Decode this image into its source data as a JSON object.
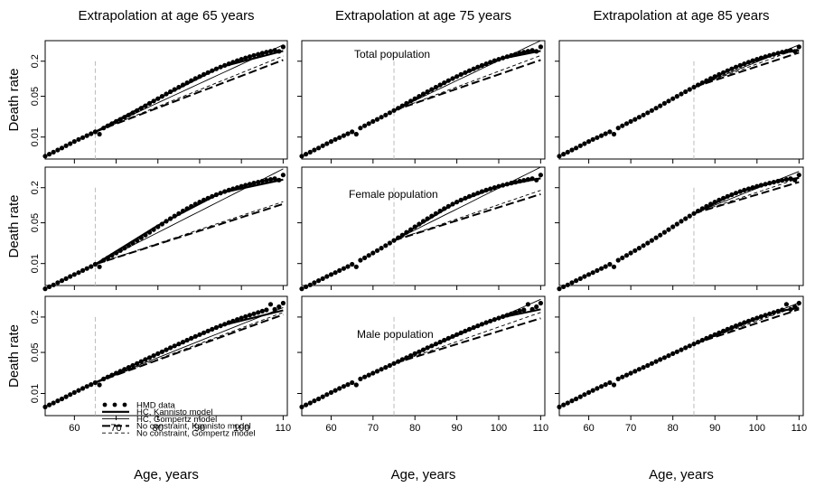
{
  "chart_data": {
    "type": "line",
    "y_scale": "log",
    "ylabel": "Death rate",
    "xlabel": "Age, years",
    "xlim": [
      53,
      111
    ],
    "ylim": [
      0.0042,
      0.45
    ],
    "x_ticks": [
      60,
      70,
      80,
      90,
      100,
      110
    ],
    "y_ticks": [
      0.01,
      0.05,
      0.2
    ],
    "y_tick_labels": [
      "0.01",
      "0.05",
      "0.2"
    ],
    "columns": [
      {
        "title": "Extrapolation at age  65 years",
        "cutoff_age": 65
      },
      {
        "title": "Extrapolation at age  75 years",
        "cutoff_age": 75
      },
      {
        "title": "Extrapolation at age  85 years",
        "cutoff_age": 85
      }
    ],
    "rows": [
      {
        "label": "Total  population"
      },
      {
        "label": "Female  population"
      },
      {
        "label": "Male  population"
      }
    ],
    "legend": {
      "placement": "bottom-left of lower-left panel",
      "entries": [
        {
          "label": "HMD data",
          "style": "points"
        },
        {
          "label": "HC, Kannisto model",
          "style": "thick-solid"
        },
        {
          "label": "HC, Gompertz model",
          "style": "thin-solid"
        },
        {
          "label": "No constraint, Kannisto model",
          "style": "thick-dashed"
        },
        {
          "label": "No constraint, Gompertz model",
          "style": "thin-dashed"
        }
      ]
    },
    "hmd_data": {
      "x": [
        53,
        54,
        55,
        56,
        57,
        58,
        59,
        60,
        61,
        62,
        63,
        64,
        65,
        66,
        67,
        68,
        69,
        70,
        71,
        72,
        73,
        74,
        75,
        76,
        77,
        78,
        79,
        80,
        81,
        82,
        83,
        84,
        85,
        86,
        87,
        88,
        89,
        90,
        91,
        92,
        93,
        94,
        95,
        96,
        97,
        98,
        99,
        100,
        101,
        102,
        103,
        104,
        105,
        106,
        107,
        108,
        109,
        110
      ],
      "total": [
        0.0047,
        0.0051,
        0.0055,
        0.006,
        0.0065,
        0.0071,
        0.0077,
        0.0084,
        0.0091,
        0.0098,
        0.0106,
        0.0114,
        0.0123,
        0.0112,
        0.0143,
        0.0156,
        0.017,
        0.0185,
        0.0201,
        0.0219,
        0.0239,
        0.0261,
        0.0285,
        0.0313,
        0.0344,
        0.0378,
        0.0415,
        0.0456,
        0.05,
        0.0548,
        0.06,
        0.0656,
        0.0717,
        0.0783,
        0.0853,
        0.0928,
        0.1008,
        0.1093,
        0.1183,
        0.1277,
        0.1376,
        0.1478,
        0.1585,
        0.1695,
        0.1808,
        0.1924,
        0.2042,
        0.216,
        0.2279,
        0.2397,
        0.2514,
        0.263,
        0.2744,
        0.2856,
        0.2965,
        0.307,
        0.295,
        0.352
      ],
      "female": [
        0.0037,
        0.004,
        0.0043,
        0.0047,
        0.0051,
        0.0055,
        0.006,
        0.0065,
        0.007,
        0.0076,
        0.0082,
        0.0089,
        0.0097,
        0.0088,
        0.0114,
        0.0125,
        0.0138,
        0.0152,
        0.0167,
        0.0184,
        0.0203,
        0.0225,
        0.0249,
        0.0277,
        0.0308,
        0.0343,
        0.0383,
        0.0427,
        0.0476,
        0.053,
        0.0589,
        0.0653,
        0.0722,
        0.0796,
        0.0875,
        0.0958,
        0.1045,
        0.1135,
        0.1228,
        0.1323,
        0.142,
        0.1518,
        0.1617,
        0.1716,
        0.1815,
        0.1914,
        0.2012,
        0.211,
        0.2207,
        0.2303,
        0.2398,
        0.2492,
        0.2585,
        0.2677,
        0.2768,
        0.2858,
        0.27,
        0.33
      ],
      "male": [
        0.0059,
        0.0064,
        0.0069,
        0.0075,
        0.0081,
        0.0088,
        0.0096,
        0.0104,
        0.0113,
        0.0122,
        0.0132,
        0.0142,
        0.0153,
        0.014,
        0.0177,
        0.0191,
        0.0206,
        0.0222,
        0.0239,
        0.0258,
        0.0278,
        0.03,
        0.0324,
        0.035,
        0.0378,
        0.0408,
        0.0441,
        0.0476,
        0.0514,
        0.0555,
        0.0599,
        0.0646,
        0.0697,
        0.0751,
        0.0809,
        0.0871,
        0.0937,
        0.1007,
        0.1081,
        0.1159,
        0.1241,
        0.1327,
        0.1417,
        0.1511,
        0.1609,
        0.1711,
        0.1817,
        0.1926,
        0.2039,
        0.2155,
        0.2274,
        0.2396,
        0.2521,
        0.2648,
        0.33,
        0.27,
        0.3,
        0.345
      ]
    },
    "fits": {
      "total": {
        "c65": {
          "hc_kannisto": [
            [
              65,
              0.0123
            ],
            [
              80,
              0.0456
            ],
            [
              95,
              0.159
            ],
            [
              110,
              0.3
            ]
          ],
          "hc_gompertz": [
            [
              65,
              0.0123
            ],
            [
              110,
              0.38
            ]
          ],
          "nc_kannisto": [
            [
              65,
              0.0123
            ],
            [
              110,
              0.21
            ]
          ],
          "nc_gompertz": [
            [
              65,
              0.0123
            ],
            [
              110,
              0.245
            ]
          ]
        },
        "c75": {
          "hc_kannisto": [
            [
              75,
              0.0285
            ],
            [
              90,
              0.1093
            ],
            [
              100,
              0.216
            ],
            [
              110,
              0.3
            ]
          ],
          "hc_gompertz": [
            [
              75,
              0.0285
            ],
            [
              110,
              0.45
            ]
          ],
          "nc_kannisto": [
            [
              75,
              0.0285
            ],
            [
              110,
              0.21
            ]
          ],
          "nc_gompertz": [
            [
              75,
              0.0285
            ],
            [
              110,
              0.25
            ]
          ]
        },
        "c85": {
          "hc_kannisto": [
            [
              85,
              0.0717
            ],
            [
              95,
              0.1585
            ],
            [
              105,
              0.2744
            ],
            [
              110,
              0.305
            ]
          ],
          "hc_gompertz": [
            [
              85,
              0.0717
            ],
            [
              110,
              0.38
            ]
          ],
          "nc_kannisto": [
            [
              85,
              0.0717
            ],
            [
              110,
              0.28
            ]
          ],
          "nc_gompertz": [
            [
              85,
              0.0717
            ],
            [
              110,
              0.33
            ]
          ]
        }
      },
      "female": {
        "c65": {
          "hc_kannisto": [
            [
              65,
              0.0097
            ],
            [
              80,
              0.045
            ],
            [
              95,
              0.162
            ],
            [
              110,
              0.275
            ]
          ],
          "hc_gompertz": [
            [
              65,
              0.0097
            ],
            [
              110,
              0.42
            ]
          ],
          "nc_kannisto": [
            [
              65,
              0.0097
            ],
            [
              110,
              0.105
            ]
          ],
          "nc_gompertz": [
            [
              65,
              0.0097
            ],
            [
              110,
              0.115
            ]
          ]
        },
        "c75": {
          "hc_kannisto": [
            [
              75,
              0.0249
            ],
            [
              90,
              0.1135
            ],
            [
              100,
              0.211
            ],
            [
              110,
              0.29
            ]
          ],
          "hc_gompertz": [
            [
              75,
              0.0249
            ],
            [
              110,
              0.45
            ]
          ],
          "nc_kannisto": [
            [
              75,
              0.0249
            ],
            [
              110,
              0.155
            ]
          ],
          "nc_gompertz": [
            [
              75,
              0.0249
            ],
            [
              110,
              0.18
            ]
          ]
        },
        "c85": {
          "hc_kannisto": [
            [
              85,
              0.0722
            ],
            [
              95,
              0.1617
            ],
            [
              105,
              0.2585
            ],
            [
              110,
              0.295
            ]
          ],
          "hc_gompertz": [
            [
              85,
              0.0722
            ],
            [
              110,
              0.38
            ]
          ],
          "nc_kannisto": [
            [
              85,
              0.0722
            ],
            [
              110,
              0.25
            ]
          ],
          "nc_gompertz": [
            [
              85,
              0.0722
            ],
            [
              110,
              0.29
            ]
          ]
        }
      },
      "male": {
        "c65": {
          "hc_kannisto": [
            [
              65,
              0.0153
            ],
            [
              80,
              0.0476
            ],
            [
              95,
              0.142
            ],
            [
              110,
              0.26
            ]
          ],
          "hc_gompertz": [
            [
              65,
              0.0153
            ],
            [
              110,
              0.29
            ]
          ],
          "nc_kannisto": [
            [
              65,
              0.0153
            ],
            [
              110,
              0.22
            ]
          ],
          "nc_gompertz": [
            [
              65,
              0.0153
            ],
            [
              110,
              0.24
            ]
          ]
        },
        "c75": {
          "hc_kannisto": [
            [
              75,
              0.0324
            ],
            [
              90,
              0.1007
            ],
            [
              100,
              0.1926
            ],
            [
              110,
              0.27
            ]
          ],
          "hc_gompertz": [
            [
              75,
              0.0324
            ],
            [
              110,
              0.4
            ]
          ],
          "nc_kannisto": [
            [
              75,
              0.0324
            ],
            [
              110,
              0.19
            ]
          ],
          "nc_gompertz": [
            [
              75,
              0.0324
            ],
            [
              110,
              0.24
            ]
          ]
        },
        "c85": {
          "hc_kannisto": [
            [
              85,
              0.0697
            ],
            [
              95,
              0.1417
            ],
            [
              105,
              0.2521
            ],
            [
              110,
              0.285
            ]
          ],
          "hc_gompertz": [
            [
              85,
              0.0697
            ],
            [
              110,
              0.35
            ]
          ],
          "nc_kannisto": [
            [
              85,
              0.0697
            ],
            [
              110,
              0.27
            ]
          ],
          "nc_gompertz": [
            [
              85,
              0.0697
            ],
            [
              110,
              0.31
            ]
          ]
        }
      }
    },
    "colors": {
      "data": "#000000",
      "lines": "#000000",
      "cutoff_line": "#bbbbbb"
    }
  }
}
